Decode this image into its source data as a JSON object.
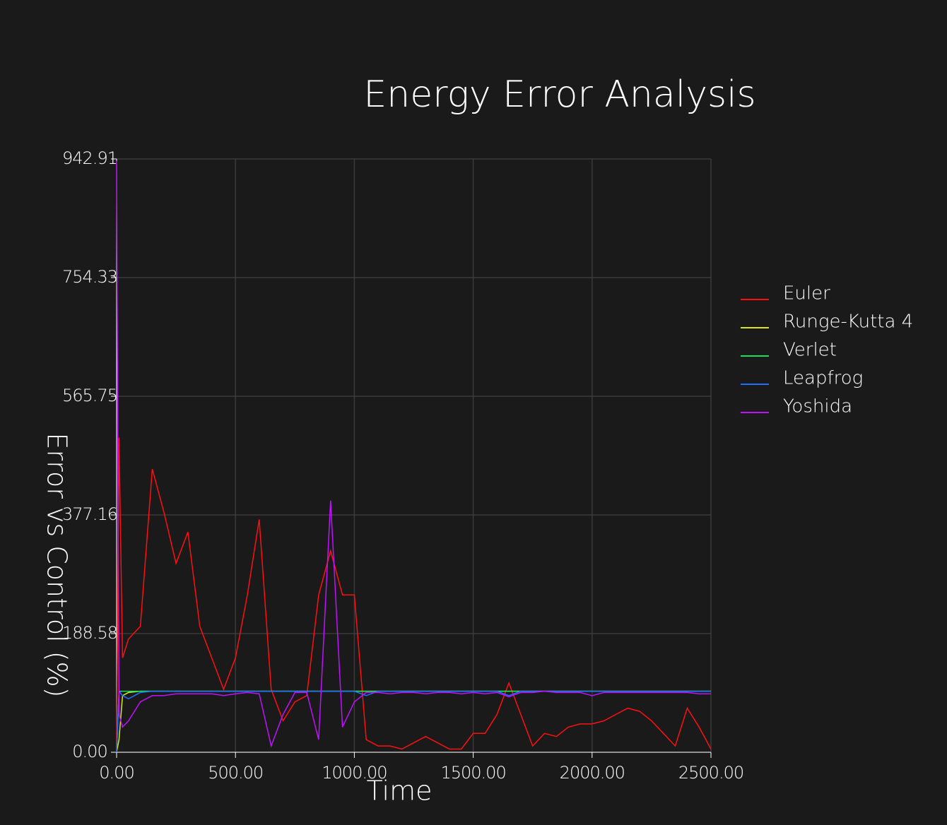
{
  "chart_data": {
    "type": "line",
    "title": "Energy Error Analysis",
    "x_label": "Time",
    "y_label": "Error vs Control (%)",
    "x": [
      0,
      10,
      25,
      50,
      100,
      150,
      200,
      250,
      300,
      350,
      400,
      450,
      500,
      550,
      600,
      650,
      700,
      750,
      800,
      850,
      900,
      950,
      1000,
      1050,
      1100,
      1150,
      1200,
      1250,
      1300,
      1350,
      1400,
      1450,
      1500,
      1550,
      1600,
      1650,
      1700,
      1750,
      1800,
      1850,
      1900,
      1950,
      2000,
      2050,
      2100,
      2150,
      2200,
      2250,
      2300,
      2350,
      2400,
      2450,
      2500
    ],
    "series": [
      {
        "name": "Euler",
        "color": "#ff1010",
        "values": [
          0,
          500,
          150,
          180,
          200,
          450,
          380,
          300,
          350,
          200,
          150,
          100,
          150,
          250,
          370,
          100,
          50,
          80,
          90,
          250,
          320,
          250,
          250,
          20,
          10,
          10,
          5,
          15,
          25,
          15,
          5,
          5,
          30,
          30,
          60,
          110,
          60,
          10,
          30,
          25,
          40,
          45,
          45,
          50,
          60,
          70,
          65,
          50,
          30,
          10,
          70,
          40,
          5
        ]
      },
      {
        "name": "Runge-Kutta 4",
        "color": "#d8e820",
        "values": [
          0,
          20,
          90,
          95,
          97,
          97,
          97,
          97,
          97,
          97,
          97,
          97,
          97,
          97,
          97,
          97,
          97,
          97,
          97,
          97,
          97,
          97,
          97,
          97,
          97,
          97,
          97,
          97,
          97,
          97,
          97,
          97,
          97,
          97,
          97,
          97,
          97,
          97,
          97,
          97,
          97,
          97,
          97,
          97,
          97,
          97,
          97,
          97,
          97,
          97,
          97,
          97,
          97
        ]
      },
      {
        "name": "Verlet",
        "color": "#10e060",
        "values": [
          0,
          97,
          97,
          97,
          97,
          97,
          97,
          97,
          97,
          97,
          97,
          97,
          97,
          97,
          97,
          97,
          97,
          97,
          97,
          97,
          97,
          97,
          97,
          97,
          97,
          97,
          97,
          97,
          97,
          97,
          97,
          97,
          97,
          97,
          97,
          97,
          97,
          97,
          97,
          97,
          97,
          97,
          97,
          97,
          97,
          97,
          97,
          97,
          97,
          97,
          97,
          97,
          97
        ]
      },
      {
        "name": "Leapfrog",
        "color": "#2070ff",
        "values": [
          0,
          97,
          90,
          85,
          95,
          97,
          97,
          97,
          97,
          97,
          97,
          97,
          97,
          97,
          97,
          97,
          97,
          97,
          97,
          97,
          97,
          97,
          97,
          90,
          97,
          97,
          97,
          97,
          97,
          97,
          97,
          97,
          97,
          97,
          97,
          90,
          97,
          97,
          97,
          97,
          97,
          97,
          97,
          97,
          97,
          97,
          97,
          97,
          97,
          97,
          97,
          97,
          97
        ]
      },
      {
        "name": "Yoshida",
        "color": "#c010ff",
        "values": [
          940,
          60,
          40,
          50,
          80,
          90,
          90,
          93,
          93,
          93,
          93,
          90,
          93,
          95,
          93,
          10,
          60,
          95,
          95,
          20,
          400,
          40,
          80,
          95,
          95,
          93,
          95,
          95,
          93,
          95,
          95,
          93,
          95,
          93,
          95,
          88,
          95,
          95,
          97,
          95,
          95,
          95,
          90,
          95,
          95,
          95,
          95,
          95,
          95,
          95,
          95,
          93,
          93
        ]
      }
    ],
    "xlim": [
      0,
      2500
    ],
    "xticks": [
      {
        "value": 0,
        "label": "0.00"
      },
      {
        "value": 500,
        "label": "500.00"
      },
      {
        "value": 1000,
        "label": "1000.00"
      },
      {
        "value": 1500,
        "label": "1500.00"
      },
      {
        "value": 2000,
        "label": "2000.00"
      },
      {
        "value": 2500,
        "label": "2500.00"
      }
    ],
    "ylim": [
      0,
      942.91
    ],
    "yticks": [
      {
        "value": 0,
        "label": "0.00"
      },
      188.58,
      377.16,
      565.75,
      754.33,
      942.91
    ],
    "grid": true,
    "legend": "right"
  }
}
